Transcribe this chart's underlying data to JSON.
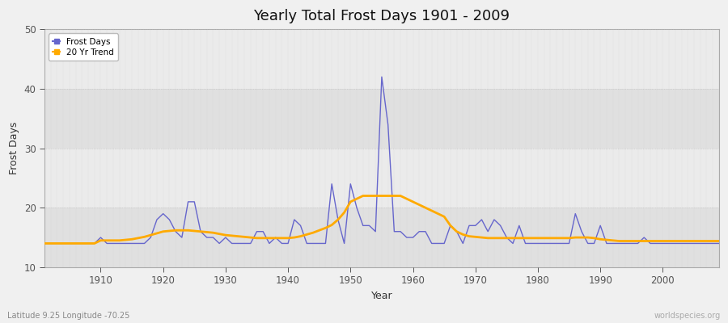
{
  "title": "Yearly Total Frost Days 1901 - 2009",
  "xlabel": "Year",
  "ylabel": "Frost Days",
  "xlim": [
    1901,
    2009
  ],
  "ylim": [
    10,
    50
  ],
  "yticks": [
    10,
    20,
    30,
    40,
    50
  ],
  "xticks": [
    1910,
    1920,
    1930,
    1940,
    1950,
    1960,
    1970,
    1980,
    1990,
    2000
  ],
  "fig_bg_color": "#f0f0f0",
  "plot_bg_color": "#e8e8e8",
  "band_light": "#ebebeb",
  "band_dark": "#e0e0e0",
  "frost_color": "#6666cc",
  "trend_color": "#ffaa00",
  "watermark": "worldspecies.org",
  "caption": "Latitude 9.25 Longitude -70.25",
  "frost_years": [
    1901,
    1902,
    1903,
    1904,
    1905,
    1906,
    1907,
    1908,
    1909,
    1910,
    1911,
    1912,
    1913,
    1914,
    1915,
    1916,
    1917,
    1918,
    1919,
    1920,
    1921,
    1922,
    1923,
    1924,
    1925,
    1926,
    1927,
    1928,
    1929,
    1930,
    1931,
    1932,
    1933,
    1934,
    1935,
    1936,
    1937,
    1938,
    1939,
    1940,
    1941,
    1942,
    1943,
    1944,
    1945,
    1946,
    1947,
    1948,
    1949,
    1950,
    1951,
    1952,
    1953,
    1954,
    1955,
    1956,
    1957,
    1958,
    1959,
    1960,
    1961,
    1962,
    1963,
    1964,
    1965,
    1966,
    1967,
    1968,
    1969,
    1970,
    1971,
    1972,
    1973,
    1974,
    1975,
    1976,
    1977,
    1978,
    1979,
    1980,
    1981,
    1982,
    1983,
    1984,
    1985,
    1986,
    1987,
    1988,
    1989,
    1990,
    1991,
    1992,
    1993,
    1994,
    1995,
    1996,
    1997,
    1998,
    1999,
    2000,
    2001,
    2002,
    2003,
    2004,
    2005,
    2006,
    2007,
    2008,
    2009
  ],
  "frost_values": [
    14,
    14,
    14,
    14,
    14,
    14,
    14,
    14,
    14,
    15,
    14,
    14,
    14,
    14,
    14,
    14,
    14,
    15,
    18,
    19,
    18,
    16,
    15,
    21,
    21,
    16,
    15,
    15,
    14,
    15,
    14,
    14,
    14,
    14,
    16,
    16,
    14,
    15,
    14,
    14,
    18,
    17,
    14,
    14,
    14,
    14,
    24,
    18,
    14,
    24,
    20,
    17,
    17,
    16,
    42,
    34,
    16,
    16,
    15,
    15,
    16,
    16,
    14,
    14,
    14,
    17,
    16,
    14,
    17,
    17,
    18,
    16,
    18,
    17,
    15,
    14,
    17,
    14,
    14,
    14,
    14,
    14,
    14,
    14,
    14,
    19,
    16,
    14,
    14,
    17,
    14,
    14,
    14,
    14,
    14,
    14,
    15,
    14,
    14,
    14,
    14,
    14,
    14,
    14,
    14,
    14,
    14,
    14,
    14
  ],
  "trend_years": [
    1901,
    1902,
    1903,
    1904,
    1905,
    1906,
    1907,
    1908,
    1909,
    1910,
    1911,
    1912,
    1913,
    1914,
    1915,
    1916,
    1917,
    1918,
    1919,
    1920,
    1921,
    1922,
    1923,
    1924,
    1925,
    1926,
    1927,
    1928,
    1929,
    1930,
    1931,
    1932,
    1933,
    1934,
    1935,
    1936,
    1937,
    1938,
    1939,
    1940,
    1941,
    1942,
    1943,
    1944,
    1945,
    1946,
    1947,
    1948,
    1949,
    1950,
    1951,
    1952,
    1953,
    1954,
    1955,
    1956,
    1957,
    1958,
    1959,
    1960,
    1961,
    1962,
    1963,
    1964,
    1965,
    1966,
    1967,
    1968,
    1969,
    1970,
    1971,
    1972,
    1973,
    1974,
    1975,
    1976,
    1977,
    1978,
    1979,
    1980,
    1981,
    1982,
    1983,
    1984,
    1985,
    1986,
    1987,
    1988,
    1989,
    1990,
    1991,
    1992,
    1993,
    1994,
    1995,
    1996,
    1997,
    1998,
    1999,
    2000,
    2001,
    2002,
    2003,
    2004,
    2005,
    2006,
    2007,
    2008,
    2009
  ],
  "trend_values": [
    14.0,
    14.0,
    14.0,
    14.0,
    14.0,
    14.0,
    14.0,
    14.0,
    14.0,
    14.5,
    14.5,
    14.5,
    14.5,
    14.6,
    14.7,
    14.9,
    15.1,
    15.4,
    15.7,
    16.0,
    16.1,
    16.2,
    16.2,
    16.2,
    16.1,
    16.0,
    15.9,
    15.8,
    15.6,
    15.4,
    15.3,
    15.2,
    15.1,
    15.0,
    14.9,
    14.9,
    14.9,
    14.9,
    14.9,
    14.9,
    15.0,
    15.2,
    15.5,
    15.8,
    16.2,
    16.6,
    17.1,
    18.0,
    19.2,
    21.0,
    21.5,
    22.0,
    22.0,
    22.0,
    22.0,
    22.0,
    22.0,
    22.0,
    21.5,
    21.0,
    20.5,
    20.0,
    19.5,
    19.0,
    18.5,
    17.0,
    16.0,
    15.5,
    15.2,
    15.1,
    15.0,
    14.9,
    14.9,
    14.9,
    14.9,
    14.9,
    14.9,
    14.9,
    14.9,
    14.9,
    14.9,
    14.9,
    14.9,
    14.9,
    14.9,
    15.0,
    15.0,
    15.0,
    14.9,
    14.7,
    14.6,
    14.5,
    14.4,
    14.4,
    14.4,
    14.4,
    14.4,
    14.4,
    14.4,
    14.4,
    14.4,
    14.4,
    14.4,
    14.4,
    14.4,
    14.4,
    14.4,
    14.4,
    14.4
  ]
}
